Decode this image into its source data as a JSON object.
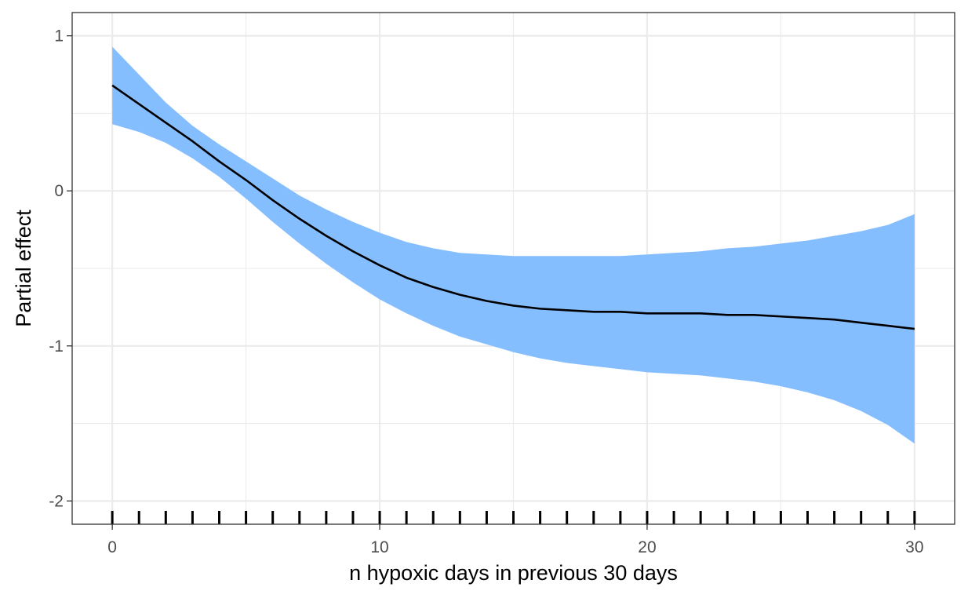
{
  "chart_data": {
    "type": "line",
    "xlabel": "n hypoxic days in previous 30 days",
    "ylabel": "Partial effect",
    "xlim": [
      -1.5,
      31.5
    ],
    "ylim": [
      -2.15,
      1.15
    ],
    "x_ticks": [
      0,
      10,
      20,
      30
    ],
    "x_tick_labels": [
      "0",
      "10",
      "20",
      "30"
    ],
    "y_ticks": [
      -2,
      -1,
      0,
      1
    ],
    "y_tick_labels": [
      "-2",
      "-1",
      "0",
      "1"
    ],
    "grid": true,
    "colors": {
      "ribbon": "#85BEFF",
      "line": "#000000",
      "grid": "#EBEBEB",
      "panel_border": "#333333",
      "rug": "#000000"
    },
    "series": [
      {
        "x": [
          0,
          1,
          2,
          3,
          4,
          5,
          6,
          7,
          8,
          9,
          10,
          11,
          12,
          13,
          14,
          15,
          16,
          17,
          18,
          19,
          20,
          21,
          22,
          23,
          24,
          25,
          26,
          27,
          28,
          29,
          30
        ],
        "fit": [
          0.68,
          0.56,
          0.44,
          0.32,
          0.19,
          0.07,
          -0.06,
          -0.18,
          -0.29,
          -0.39,
          -0.48,
          -0.56,
          -0.62,
          -0.67,
          -0.71,
          -0.74,
          -0.76,
          -0.77,
          -0.78,
          -0.78,
          -0.79,
          -0.79,
          -0.79,
          -0.8,
          -0.8,
          -0.81,
          -0.82,
          -0.83,
          -0.85,
          -0.87,
          -0.89
        ],
        "lower": [
          0.43,
          0.38,
          0.31,
          0.21,
          0.09,
          -0.05,
          -0.2,
          -0.34,
          -0.47,
          -0.59,
          -0.7,
          -0.79,
          -0.87,
          -0.94,
          -0.99,
          -1.04,
          -1.08,
          -1.11,
          -1.13,
          -1.15,
          -1.17,
          -1.18,
          -1.19,
          -1.21,
          -1.23,
          -1.26,
          -1.3,
          -1.35,
          -1.42,
          -1.51,
          -1.63
        ],
        "upper": [
          0.93,
          0.75,
          0.57,
          0.42,
          0.3,
          0.19,
          0.08,
          -0.03,
          -0.12,
          -0.2,
          -0.27,
          -0.33,
          -0.37,
          -0.4,
          -0.41,
          -0.42,
          -0.42,
          -0.42,
          -0.42,
          -0.42,
          -0.41,
          -0.4,
          -0.39,
          -0.37,
          -0.36,
          -0.34,
          -0.32,
          -0.29,
          -0.26,
          -0.22,
          -0.15
        ]
      }
    ],
    "rug": [
      0,
      1,
      2,
      3,
      4,
      5,
      6,
      7,
      8,
      9,
      10,
      11,
      12,
      13,
      14,
      15,
      16,
      17,
      18,
      19,
      20,
      21,
      22,
      23,
      24,
      25,
      26,
      27,
      28,
      29,
      30
    ]
  }
}
